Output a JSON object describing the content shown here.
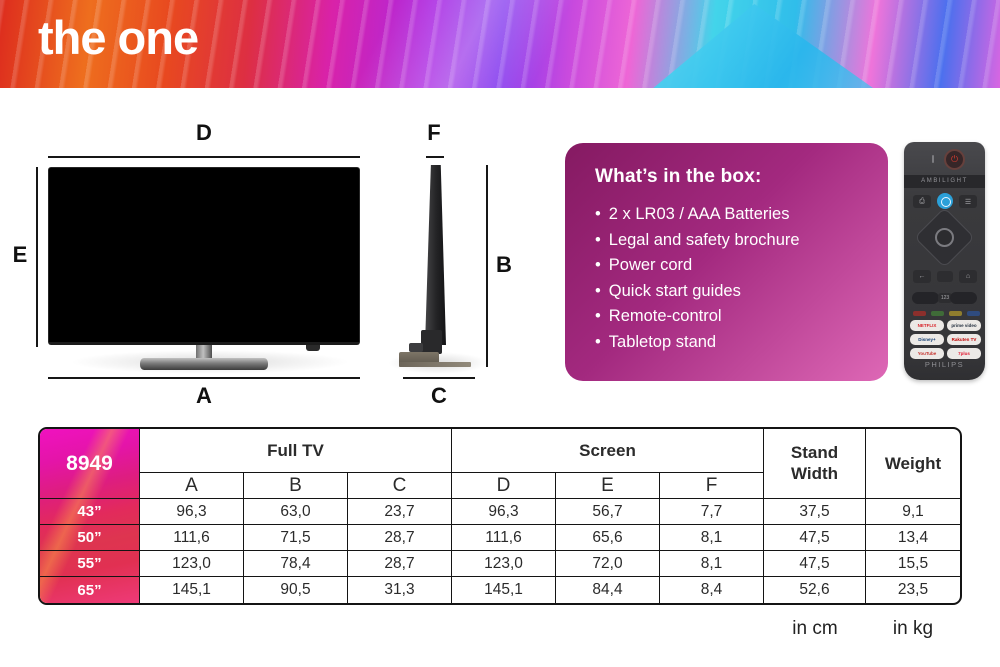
{
  "banner": {
    "title": "the one"
  },
  "diagram": {
    "front": {
      "top_label": "D",
      "left_label": "E",
      "bottom_label": "A"
    },
    "side": {
      "top_label": "F",
      "right_label": "B",
      "bottom_label": "C"
    }
  },
  "box": {
    "title": "What’s in the box:",
    "bullet": "•",
    "items": [
      "2 x LR03 / AAA Batteries",
      "Legal and safety brochure",
      "Power cord",
      "Quick start guides",
      "Remote-control",
      "Tabletop stand"
    ]
  },
  "remote": {
    "ambilight_label": "AMBILIGHT",
    "brand": "PHILIPS",
    "icons": {
      "power": "⏻",
      "source": "⎙",
      "settings": "☰",
      "back": "←",
      "home": "⌂",
      "keypad": "123"
    },
    "apps": [
      {
        "label": "NETFLIX",
        "fg": "#d81f26"
      },
      {
        "label": "prime video",
        "fg": "#232f3e"
      },
      {
        "label": "Disney+",
        "fg": "#113c72"
      },
      {
        "label": "Rakuten TV",
        "fg": "#bf0000"
      },
      {
        "label": "YouTube",
        "fg": "#c4302b"
      },
      {
        "label": "7plus",
        "fg": "#e11931"
      }
    ]
  },
  "table": {
    "model": "8949",
    "group_full_tv": "Full TV",
    "group_screen": "Screen",
    "stand_width_header": "Stand Width",
    "weight_header": "Weight",
    "columns": [
      "A",
      "B",
      "C",
      "D",
      "E",
      "F"
    ],
    "rows": [
      {
        "size": "43”",
        "values": [
          "96,3",
          "63,0",
          "23,7",
          "96,3",
          "56,7",
          "7,7",
          "37,5",
          "9,1"
        ]
      },
      {
        "size": "50”",
        "values": [
          "111,6",
          "71,5",
          "28,7",
          "111,6",
          "65,6",
          "8,1",
          "47,5",
          "13,4"
        ]
      },
      {
        "size": "55”",
        "values": [
          "123,0",
          "78,4",
          "28,7",
          "123,0",
          "72,0",
          "8,1",
          "47,5",
          "15,5"
        ]
      },
      {
        "size": "65”",
        "values": [
          "145,1",
          "90,5",
          "31,3",
          "145,1",
          "84,4",
          "8,4",
          "52,6",
          "23,5"
        ]
      }
    ],
    "units": {
      "cm": "in cm",
      "kg": "in kg"
    }
  },
  "colors": {
    "banner_red": "#dd2c1e",
    "banner_magenta": "#d922a8",
    "banner_purple": "#8338ee",
    "banner_cyan": "#43d4ea",
    "box_gradient_start": "#851a62",
    "box_gradient_end": "#de68b6",
    "table_strip_top": "#f012c0",
    "table_strip_bottom": "#ee3a78",
    "remote_body": "#3a3a3d",
    "voice_button_blue": "#2ba0d8",
    "power_glyph_red": "#d23b2f",
    "netflix_red": "#d81f26"
  }
}
